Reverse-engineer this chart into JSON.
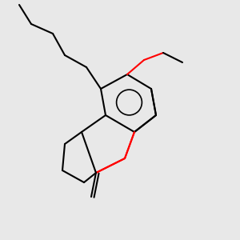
{
  "background_color": "#e8e8e8",
  "bond_color": "#000000",
  "oxygen_color": "#ff0000",
  "line_width": 1.5,
  "fig_width": 3.0,
  "fig_height": 3.0,
  "dpi": 100
}
